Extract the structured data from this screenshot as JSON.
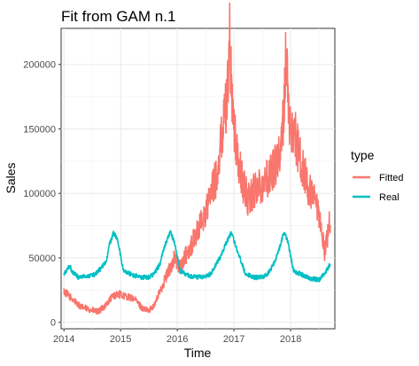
{
  "chart_data": {
    "type": "line",
    "title": "Fit from GAM n.1",
    "xlabel": "Time",
    "ylabel": "Sales",
    "xlim": [
      2013.95,
      2018.78
    ],
    "ylim": [
      -5000,
      228000
    ],
    "x_ticks": [
      2014,
      2015,
      2016,
      2017,
      2018
    ],
    "x_tick_labels": [
      "2014",
      "2015",
      "2016",
      "2017",
      "2018"
    ],
    "y_ticks": [
      0,
      50000,
      100000,
      150000,
      200000
    ],
    "y_tick_labels": [
      "0",
      "50000",
      "100000",
      "150000",
      "200000"
    ],
    "grid": true,
    "legend": {
      "title": "type",
      "placement": "right"
    },
    "series": [
      {
        "name": "Fitted",
        "color": "#F8766D",
        "x": [
          2014.0,
          2014.15,
          2014.3,
          2014.45,
          2014.6,
          2014.75,
          2014.85,
          2014.95,
          2015.1,
          2015.25,
          2015.4,
          2015.5,
          2015.6,
          2015.75,
          2015.85,
          2015.95,
          2016.05,
          2016.15,
          2016.25,
          2016.35,
          2016.5,
          2016.6,
          2016.7,
          2016.8,
          2016.88,
          2016.92,
          2016.98,
          2017.05,
          2017.15,
          2017.25,
          2017.4,
          2017.55,
          2017.65,
          2017.75,
          2017.85,
          2017.92,
          2017.98,
          2018.05,
          2018.15,
          2018.3,
          2018.45,
          2018.55,
          2018.6,
          2018.7
        ],
        "values": [
          24000,
          18000,
          12000,
          10000,
          8000,
          14000,
          20000,
          22000,
          20000,
          18000,
          10000,
          9000,
          14000,
          30000,
          40000,
          50000,
          42000,
          52000,
          60000,
          70000,
          85000,
          100000,
          115000,
          150000,
          175000,
          222000,
          160000,
          130000,
          108000,
          95000,
          105000,
          110000,
          115000,
          125000,
          140000,
          208000,
          150000,
          150000,
          130000,
          105000,
          90000,
          70000,
          55000,
          80000
        ]
      },
      {
        "name": "Real",
        "color": "#00BFC4",
        "x": [
          2014.0,
          2014.1,
          2014.15,
          2014.25,
          2014.4,
          2014.55,
          2014.65,
          2014.75,
          2014.8,
          2014.88,
          2014.95,
          2015.05,
          2015.2,
          2015.35,
          2015.5,
          2015.6,
          2015.7,
          2015.78,
          2015.88,
          2015.95,
          2016.05,
          2016.2,
          2016.35,
          2016.5,
          2016.6,
          2016.75,
          2016.88,
          2016.95,
          2017.05,
          2017.2,
          2017.35,
          2017.5,
          2017.6,
          2017.7,
          2017.8,
          2017.88,
          2017.95,
          2018.05,
          2018.2,
          2018.35,
          2018.5,
          2018.6,
          2018.7
        ],
        "values": [
          37000,
          44000,
          39000,
          35000,
          36000,
          37000,
          42000,
          47000,
          60000,
          70000,
          63000,
          40000,
          37000,
          35000,
          35000,
          38000,
          46000,
          60000,
          70000,
          62000,
          40000,
          36000,
          35000,
          35000,
          38000,
          50000,
          63000,
          70000,
          57000,
          38000,
          35000,
          35000,
          38000,
          45000,
          57000,
          70000,
          63000,
          40000,
          37000,
          34000,
          33000,
          38000,
          45000
        ]
      }
    ]
  }
}
